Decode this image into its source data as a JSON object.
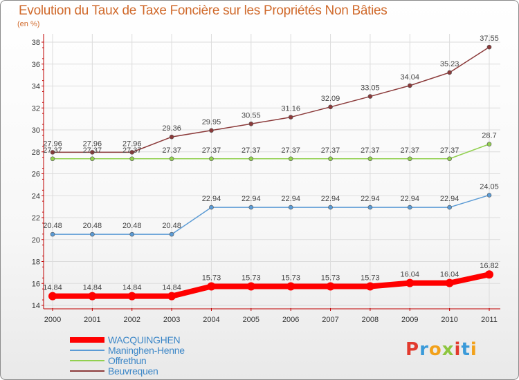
{
  "title": "Evolution du Taux de Taxe Foncière sur les Propriétés Non Bâties",
  "subtitle": "(en %)",
  "logo": {
    "text": "Proxiti",
    "letters": [
      {
        "ch": "P",
        "color": "#e23a2e"
      },
      {
        "ch": "r",
        "color": "#3a9ad9"
      },
      {
        "ch": "o",
        "color": "#f2a11a"
      },
      {
        "ch": "x",
        "color": "#8dc63f"
      },
      {
        "ch": "i",
        "color": "#e23a2e"
      },
      {
        "ch": "t",
        "color": "#3a9ad9"
      },
      {
        "ch": "i",
        "color": "#f2a11a"
      }
    ]
  },
  "chart_data": {
    "type": "line",
    "title": "Evolution du Taux de Taxe Foncière sur les Propriétés Non Bâties",
    "ylabel": "(en %)",
    "x": [
      "2000",
      "2001",
      "2002",
      "2003",
      "2004",
      "2005",
      "2006",
      "2007",
      "2008",
      "2009",
      "2010",
      "2011"
    ],
    "ylim": [
      14,
      38
    ],
    "yticks": [
      "14",
      "16",
      "18",
      "20",
      "22",
      "24",
      "26",
      "28",
      "30",
      "32",
      "34",
      "36",
      "38"
    ],
    "grid": true,
    "legend_position": "bottom-left",
    "series": [
      {
        "name": "WACQUINGHEN",
        "color": "#ff0000",
        "width": 8,
        "values": [
          14.84,
          14.84,
          14.84,
          14.84,
          15.73,
          15.73,
          15.73,
          15.73,
          15.73,
          16.04,
          16.04,
          16.82
        ],
        "labels": [
          "14.84",
          "14.84",
          "14.84",
          "14.84",
          "15.73",
          "15.73",
          "15.73",
          "15.73",
          "15.73",
          "16.04",
          "16.04",
          "16.82"
        ]
      },
      {
        "name": "Maninghen-Henne",
        "color": "#5b9bd5",
        "width": 1.5,
        "values": [
          20.48,
          20.48,
          20.48,
          20.48,
          22.94,
          22.94,
          22.94,
          22.94,
          22.94,
          22.94,
          22.94,
          24.05
        ],
        "labels": [
          "20.48",
          "20.48",
          "20.48",
          "20.48",
          "22.94",
          "22.94",
          "22.94",
          "22.94",
          "22.94",
          "22.94",
          "22.94",
          "24.05"
        ]
      },
      {
        "name": "Offrethun",
        "color": "#92d050",
        "width": 1.5,
        "values": [
          27.37,
          27.37,
          27.37,
          27.37,
          27.37,
          27.37,
          27.37,
          27.37,
          27.37,
          27.37,
          27.37,
          28.7
        ],
        "labels": [
          "27.37",
          "27.37",
          "27.37",
          "27.37",
          "27.37",
          "27.37",
          "27.37",
          "27.37",
          "27.37",
          "27.37",
          "27.37",
          "28.7"
        ]
      },
      {
        "name": "Beuvrequen",
        "color": "#8b3a3a",
        "width": 1.5,
        "values": [
          27.96,
          27.96,
          27.96,
          29.36,
          29.95,
          30.55,
          31.16,
          32.09,
          33.05,
          34.04,
          35.23,
          37.55
        ],
        "labels": [
          "27.96",
          "27.96",
          "27.96",
          "29.36",
          "29.95",
          "30.55",
          "31.16",
          "32.09",
          "33.05",
          "34.04",
          "35.23",
          "37.55"
        ]
      }
    ]
  }
}
